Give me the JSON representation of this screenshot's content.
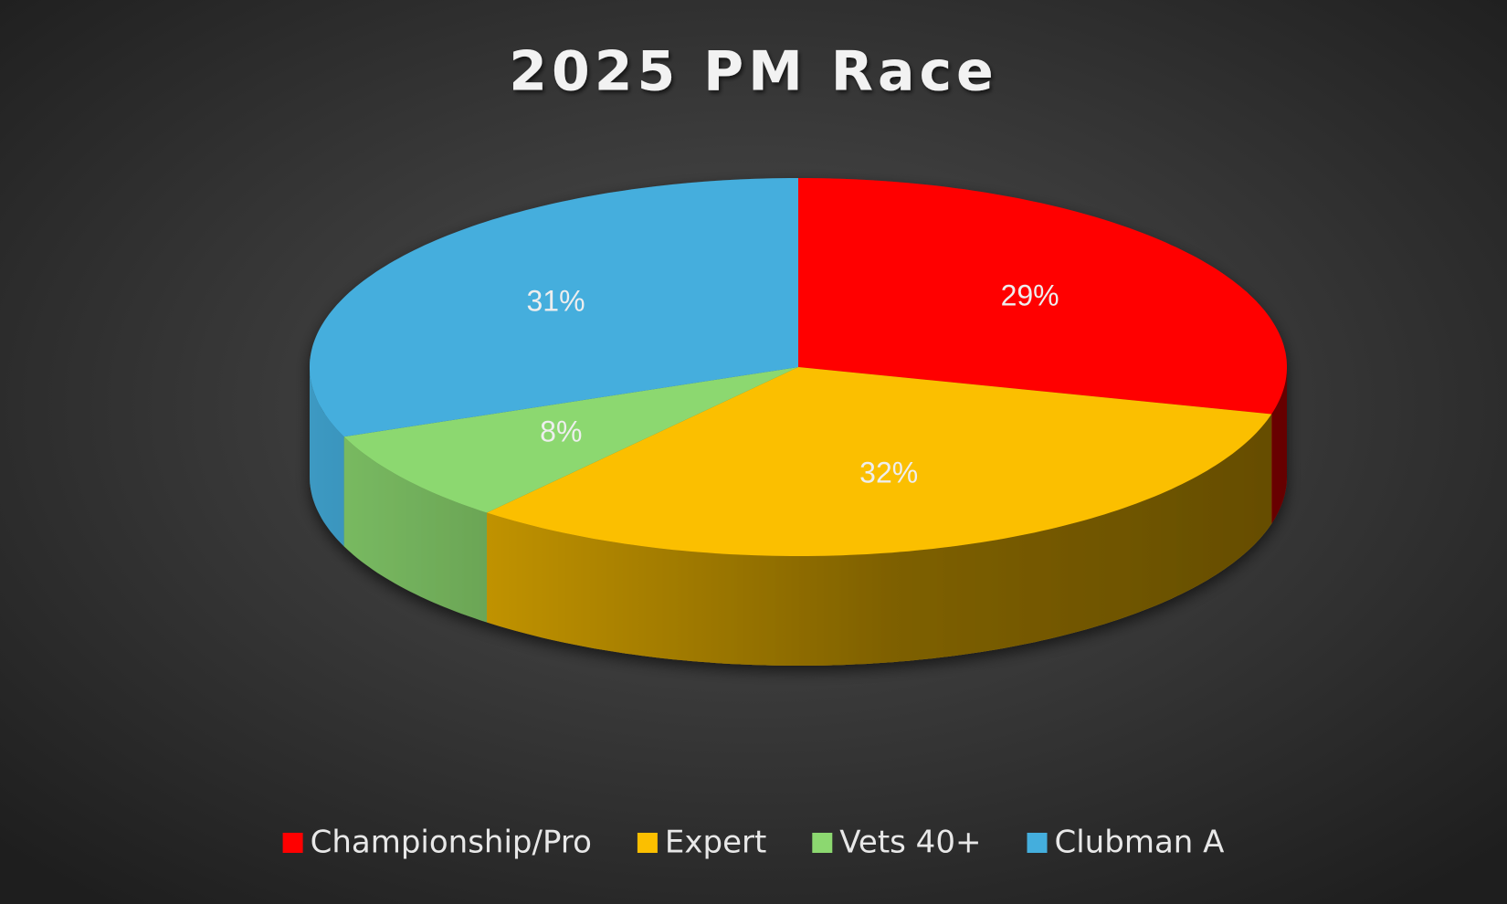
{
  "chart_data": {
    "type": "pie",
    "title": "2025 PM Race",
    "categories": [
      "Championship/Pro",
      "Expert",
      "Vets 40+",
      "Clubman A"
    ],
    "values": [
      29,
      32,
      8,
      31
    ],
    "value_labels": [
      "29%",
      "32%",
      "8%",
      "31%"
    ],
    "colors": [
      "#ff0000",
      "#fbbf00",
      "#8cd870",
      "#44aedd"
    ],
    "legend": "bottom"
  }
}
